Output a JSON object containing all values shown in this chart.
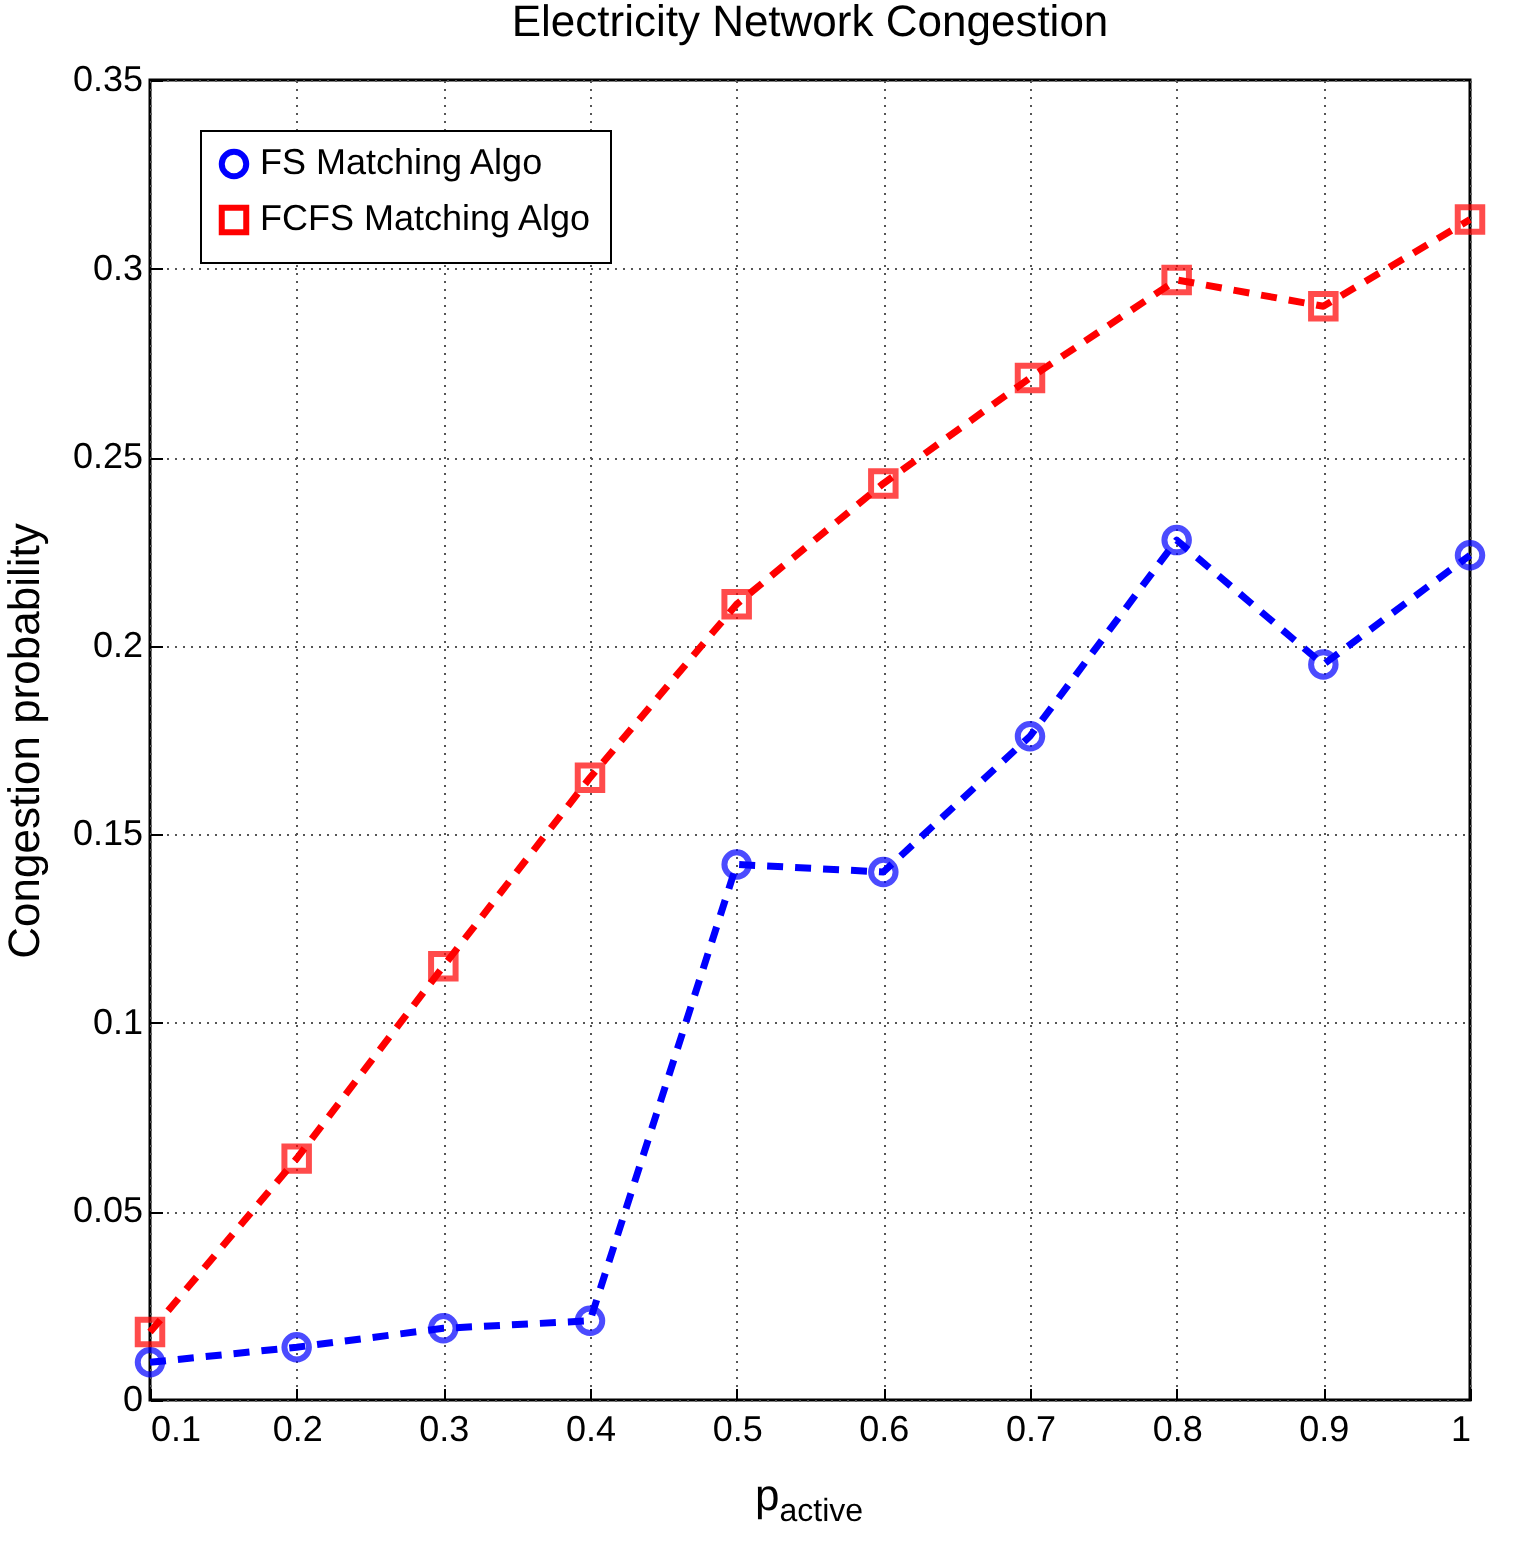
{
  "chart_data": {
    "type": "line",
    "title": "Electricity Network Congestion",
    "xlabel": "p$_{active}$",
    "ylabel": "Congestion probability",
    "x": [
      0.1,
      0.2,
      0.3,
      0.4,
      0.5,
      0.6,
      0.7,
      0.8,
      0.9,
      1
    ],
    "series": [
      {
        "name": "FS Matching Algo",
        "color": "#0000ff",
        "marker": "circle",
        "values": [
          0.01,
          0.014,
          0.019,
          0.021,
          0.142,
          0.14,
          0.176,
          0.228,
          0.195,
          0.224
        ]
      },
      {
        "name": "FCFS Matching Algo",
        "color": "#ff0000",
        "marker": "square",
        "values": [
          0.018,
          0.064,
          0.115,
          0.165,
          0.211,
          0.243,
          0.271,
          0.297,
          0.29,
          0.313
        ]
      }
    ],
    "xlim": [
      0.1,
      1
    ],
    "xticks": [
      0.1,
      0.2,
      0.3,
      0.4,
      0.5,
      0.6,
      0.7,
      0.8,
      0.9,
      1
    ],
    "ylim": [
      0,
      0.35
    ],
    "yticks": [
      0,
      0.05,
      0.1,
      0.15,
      0.2,
      0.25,
      0.3,
      0.35
    ],
    "grid": true,
    "legend": "top left",
    "line_style": "dashed"
  }
}
